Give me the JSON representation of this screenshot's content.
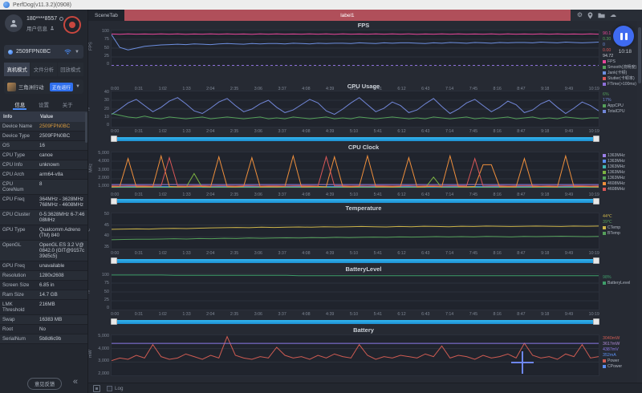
{
  "window": {
    "title": "PerfDog(v11.3.2)(0908)"
  },
  "sidebar": {
    "account": {
      "phone": "180****8557",
      "user_info_label": "用户信息"
    },
    "device_selector": {
      "name": "2509FPN0BC"
    },
    "mode_tabs": [
      {
        "label": "真机模式",
        "active": true
      },
      {
        "label": "文件分析",
        "active": false
      },
      {
        "label": "回放模式",
        "active": false
      }
    ],
    "app_row": {
      "name": "三角洲行动",
      "badge": "正在运行"
    },
    "info_tabs": [
      {
        "label": "信息",
        "active": true
      },
      {
        "label": "设置",
        "active": false
      },
      {
        "label": "关于",
        "active": false
      }
    ],
    "table": {
      "headers": [
        "Info",
        "Value"
      ],
      "rows": [
        [
          "Device Name",
          "2509FPN0BC"
        ],
        [
          "Device Type",
          "2509FPN0BC"
        ],
        [
          "OS",
          "16"
        ],
        [
          "CPU Type",
          "canoe"
        ],
        [
          "CPU Info",
          "unknown"
        ],
        [
          "CPU Arch",
          "arm64-v8a"
        ],
        [
          "CPU CoreNum",
          "8"
        ],
        [
          "CPU Freq",
          "364MHz - 3628MHz 768MHz - 4608MHz"
        ],
        [
          "CPU Cluster",
          "0-5:3628MHz 6-7:4608MHz"
        ],
        [
          "GPU Type",
          "Qualcomm Adreno (TM) 840"
        ],
        [
          "OpenGL",
          "OpenGL ES 3.2 V@0842.0 (GIT@9157c39d5c5)"
        ],
        [
          "GPU Freq",
          "unavailable"
        ],
        [
          "Resolution",
          "1280x2608"
        ],
        [
          "Screen Size",
          "6.85 in"
        ],
        [
          "Ram Size",
          "14.7 GB"
        ],
        [
          "LMK Threshold",
          "216MB"
        ],
        [
          "Swap",
          "16383 MB"
        ],
        [
          "Root",
          "No"
        ],
        [
          "SerialNum",
          "5b8d6c9b"
        ]
      ]
    },
    "feedback_button": "意见反馈"
  },
  "topbar": {
    "scene_tab": "SceneTab",
    "scene_label": "label1"
  },
  "recorder": {
    "elapsed": "10:18"
  },
  "bottom_bar": {
    "log_label": "Log"
  },
  "time_ticks": [
    "0:00",
    "0:31",
    "1:02",
    "1:33",
    "2:04",
    "2:35",
    "3:06",
    "3:37",
    "4:08",
    "4:39",
    "5:10",
    "5:41",
    "6:12",
    "6:43",
    "7:14",
    "7:45",
    "8:16",
    "8:47",
    "9:18",
    "9:49",
    "10:19"
  ],
  "chart_data": [
    {
      "id": "fps",
      "type": "line",
      "title": "FPS",
      "ylabel": "FPS",
      "yticks": [
        "100",
        "75",
        "50",
        "25",
        "0"
      ],
      "ylim": [
        0,
        100
      ],
      "show_x_axis": true,
      "series": [
        {
          "name": "FPS",
          "color": "#e8479b",
          "values": [
            90,
            89.2,
            90.3,
            89.5,
            90.1,
            89.4,
            90.2,
            89.6,
            90.4,
            89.3,
            90.1,
            89.5,
            90.3,
            89.4,
            90.2,
            89.6,
            90.1,
            89.3,
            90.4,
            89.5,
            90.2,
            89.4,
            90.1,
            89.6,
            90.3,
            89.5,
            90.2,
            89.3,
            90.4,
            89.6,
            90.1,
            89.4,
            90.3,
            89.5,
            90.2,
            89.6,
            90.4,
            89.3,
            90.1,
            89.5,
            90.2,
            89.6,
            90.3,
            89.4,
            90.1,
            89.5,
            90.4,
            89.3,
            90.2,
            89.6,
            90.1,
            89.5,
            90.3,
            89.4,
            90.2,
            89.6,
            90.1,
            89.4,
            90.3,
            89.5
          ]
        },
        {
          "name": "Smooth",
          "color": "#6d8fe0",
          "values": [
            88,
            52,
            45,
            50,
            55,
            57,
            59,
            60,
            61,
            60,
            62,
            61,
            60,
            62,
            63,
            62,
            61,
            63,
            62,
            63,
            63,
            62,
            64,
            63,
            62,
            64,
            63,
            64,
            64,
            63,
            65,
            64,
            63,
            65,
            64,
            65,
            65,
            64,
            63,
            65,
            64,
            66,
            65,
            64,
            66,
            65,
            64,
            66,
            65,
            66,
            66,
            65,
            67,
            66,
            65,
            67,
            66,
            65,
            66,
            67
          ]
        },
        {
          "name": "Jank",
          "color": "#8d6fd8",
          "dash": true,
          "values": [
            1,
            1
          ]
        }
      ],
      "legend_values": [
        {
          "text": "90.1",
          "color": "#e8479b"
        },
        {
          "text": "0.30",
          "color": "#55a05a"
        },
        {
          "text": "0",
          "color": "#6d8fe0"
        },
        {
          "text": "0.00",
          "color": "#d95757"
        },
        {
          "text": "94.72",
          "color": "#c7ccd4"
        }
      ],
      "legend_items": [
        {
          "label": "FPS",
          "color": "#e8479b"
        },
        {
          "label": "Smooth(流畅度)",
          "color": "#55a05a"
        },
        {
          "label": "Jank(卡顿)",
          "color": "#6d8fe0"
        },
        {
          "label": "Stutter(卡顿率)",
          "color": "#d95757"
        },
        {
          "label": "FTime(>100ms)",
          "color": "#8d6fd8"
        }
      ]
    },
    {
      "id": "cpu-usage",
      "type": "line",
      "title": "CPU Usage",
      "ylabel": "%",
      "yticks": [
        "40",
        "30",
        "20",
        "10",
        "0"
      ],
      "ylim": [
        0,
        40
      ],
      "show_x_axis": true,
      "series": [
        {
          "name": "TotalCPU",
          "color": "#7287d9",
          "values": [
            14,
            20,
            27,
            31,
            24,
            17,
            22,
            29,
            33,
            26,
            18,
            15,
            21,
            28,
            32,
            24,
            17,
            20,
            26,
            30,
            22,
            16,
            19,
            25,
            31,
            27,
            18,
            14,
            20,
            27,
            33,
            25,
            17,
            21,
            28,
            24,
            16,
            19,
            26,
            32,
            23,
            15,
            20,
            27,
            31,
            24,
            17,
            22,
            29,
            25,
            16,
            19,
            26,
            30,
            22,
            15,
            21,
            28,
            24,
            18
          ]
        },
        {
          "name": "AppCPU",
          "color": "#55a05a",
          "values": [
            15,
            13,
            11,
            10,
            12,
            10,
            9,
            11,
            10,
            9,
            10,
            11,
            9,
            10,
            11,
            10,
            9,
            10,
            11,
            9,
            10,
            9,
            11,
            10,
            9,
            10,
            11,
            9,
            10,
            9,
            11,
            10,
            9,
            10,
            11,
            10,
            9,
            10,
            9,
            11,
            10,
            9,
            10,
            11,
            9,
            10,
            9,
            10,
            11,
            9,
            10,
            11,
            9,
            10,
            9,
            11,
            10,
            9,
            10,
            10
          ]
        }
      ],
      "legend_values": [
        {
          "text": "6%",
          "color": "#55a05a"
        },
        {
          "text": "17%",
          "color": "#7287d9"
        }
      ],
      "legend_items": [
        {
          "label": "AppCPU",
          "color": "#55a05a"
        },
        {
          "label": "TotalCPU",
          "color": "#7287d9"
        }
      ]
    },
    {
      "id": "cpu-clock",
      "type": "line",
      "title": "CPU Clock",
      "ylabel": "MHz",
      "yticks": [
        "5,000",
        "4,000",
        "3,000",
        "2,000",
        "1,000"
      ],
      "ylim": [
        1000,
        5000
      ],
      "show_x_axis": true,
      "series": [
        {
          "name": "CPU0",
          "color": "#9b7fe8",
          "values": [
            1350,
            1350
          ]
        },
        {
          "name": "CPU1",
          "color": "#5b8ff0",
          "values": [
            1120,
            1120
          ]
        },
        {
          "name": "CPU2",
          "color": "#3fb6b2",
          "values": [
            1060,
            1060
          ]
        },
        {
          "name": "CPU3",
          "color": "#7cb342",
          "values": [
            1000,
            1000,
            1010,
            1000,
            990,
            1000,
            1010,
            1000,
            990,
            1000,
            2600,
            1000,
            990,
            1010,
            1000,
            1000,
            990,
            1000,
            1010,
            1000,
            1000,
            1010,
            990,
            1000,
            1000,
            1010,
            1000,
            990,
            1000,
            1000,
            1010,
            1000,
            1000,
            990,
            1010,
            1000,
            1000,
            1010,
            1000,
            2200,
            1000,
            990,
            1000,
            1010,
            1000,
            1000,
            990,
            1000,
            1010,
            1000,
            1000,
            1010,
            1000,
            990,
            1000,
            1000,
            1010,
            1000,
            1000,
            990
          ]
        },
        {
          "name": "CPU6",
          "color": "#ef8f3c",
          "values": [
            1100,
            1150,
            4300,
            1100,
            1120,
            1100,
            4600,
            1150,
            1100,
            1120,
            1100,
            1150,
            1100,
            4500,
            1120,
            1100,
            1150,
            4400,
            1100,
            1120,
            1100,
            1150,
            4600,
            1100,
            1120,
            1150,
            1100,
            4500,
            1120,
            1100,
            1150,
            4600,
            1100,
            1120,
            1100,
            1150,
            4400,
            1100,
            1120,
            1150,
            1100,
            4600,
            1120,
            1100,
            1150,
            3600,
            3600,
            1100,
            1120,
            1100,
            4300,
            1100,
            1150,
            1120,
            1100,
            4600,
            1100,
            1150,
            1120,
            1100
          ]
        },
        {
          "name": "CPU7",
          "color": "#d95757",
          "values": [
            1200,
            1180,
            1200,
            1220,
            1200,
            1180,
            1200,
            4400,
            1200,
            1180,
            1200,
            1220,
            1180,
            1200,
            1200,
            1180,
            1220,
            1200,
            1180,
            1200,
            1200,
            1180,
            1200,
            1220,
            1200,
            1180,
            4500,
            1200,
            1220,
            1180,
            1200,
            1180,
            1220,
            1200,
            1180,
            1200,
            1220,
            1180,
            1200,
            1200,
            1180,
            1200,
            1220,
            1200,
            4300,
            1180,
            1200,
            1220,
            1180,
            1200,
            1200,
            1220,
            1180,
            1200,
            1180,
            1200,
            1220,
            1200,
            1180,
            1200
          ]
        }
      ],
      "legend_values": [],
      "legend_items": [
        {
          "label": "1363MHz",
          "color": "#9b7fe8"
        },
        {
          "label": "1363MHz",
          "color": "#5b8ff0"
        },
        {
          "label": "1363MHz",
          "color": "#3fb6b2"
        },
        {
          "label": "1363MHz",
          "color": "#7cb342"
        },
        {
          "label": "1363MHz",
          "color": "#55a05a"
        },
        {
          "label": "4608MHz",
          "color": "#ef8f3c"
        },
        {
          "label": "4608MHz",
          "color": "#d95757"
        }
      ]
    },
    {
      "id": "temperature",
      "type": "line",
      "title": "Temperature",
      "ylabel": "℃",
      "yticks": [
        "50",
        "45",
        "40",
        "35"
      ],
      "ylim": [
        35,
        50
      ],
      "show_x_axis": true,
      "series": [
        {
          "name": "CTemp",
          "color": "#cdb54a",
          "values": [
            43.2,
            43.3,
            43.4,
            43.3,
            43.5,
            43.6,
            43.5,
            43.7,
            43.8,
            43.9,
            44,
            43.9,
            44.1,
            44,
            44.1,
            44.2,
            44.1,
            44.3,
            44.2,
            44.3,
            44.4,
            44.3,
            44.2,
            44.4,
            44.3,
            44.5,
            44.4,
            44.3,
            44.5,
            44.4,
            44.6,
            44.5,
            44.4,
            44.5,
            44.6,
            44.5,
            44.4,
            44.6,
            44.5,
            44.6
          ]
        },
        {
          "name": "BTemp",
          "color": "#55a05a",
          "values": [
            38.8,
            38.9,
            39,
            39,
            39.1,
            39.2,
            39.1,
            39.3,
            39.2,
            39.4,
            39.3,
            39.5,
            39.4,
            39.5,
            39.6,
            39.5,
            39.7,
            39.6,
            39.8,
            39.7,
            39.8,
            39.9,
            39.8,
            40,
            39.9,
            40,
            40.1,
            40,
            40.1,
            40,
            40.2,
            40.1,
            40,
            40.2,
            40.1,
            40.2,
            40.3,
            40.2,
            40.1,
            40.2
          ]
        }
      ],
      "legend_values": [
        {
          "text": "44℃",
          "color": "#cdb54a"
        },
        {
          "text": "39℃",
          "color": "#55a05a"
        }
      ],
      "legend_items": [
        {
          "label": "CTemp",
          "color": "#cdb54a"
        },
        {
          "label": "BTemp",
          "color": "#55a05a"
        }
      ]
    },
    {
      "id": "battery-level",
      "type": "line",
      "title": "BatteryLevel",
      "ylabel": "%",
      "yticks": [
        "100",
        "75",
        "50",
        "25",
        "0"
      ],
      "ylim": [
        0,
        102
      ],
      "show_x_axis": true,
      "series": [
        {
          "name": "BatteryLevel",
          "color": "#3f9e6a",
          "values": [
            100,
            100,
            100,
            100,
            100,
            99,
            99,
            99,
            99,
            99,
            99,
            99,
            99,
            99,
            99,
            98,
            98,
            98,
            98,
            98,
            98,
            98,
            98,
            98,
            98,
            98,
            98,
            98,
            98,
            98,
            98,
            98,
            98,
            98,
            98,
            98,
            98,
            98,
            98,
            98
          ]
        }
      ],
      "legend_values": [
        {
          "text": "98%",
          "color": "#3f9e6a"
        }
      ],
      "legend_items": [
        {
          "label": "BatteryLevel",
          "color": "#3f9e6a"
        }
      ]
    },
    {
      "id": "battery",
      "type": "line",
      "title": "Battery",
      "ylabel": "mW",
      "yticks": [
        "5,000",
        "4,000",
        "3,000",
        "2,000"
      ],
      "ylim": [
        2000,
        5000
      ],
      "show_x_axis": false,
      "crosshair": true,
      "series": [
        {
          "name": "Power",
          "color": "#cf5b52",
          "values": [
            3100,
            3300,
            3200,
            3500,
            3300,
            4300,
            3400,
            3200,
            3300,
            3600,
            3400,
            3200,
            3500,
            3300,
            4900,
            3500,
            3300,
            3200,
            3400,
            3300,
            4100,
            3500,
            3300,
            3400,
            3200,
            3500,
            3300,
            3600,
            3400,
            3300,
            4300,
            3500,
            3200,
            3400,
            3300,
            3500,
            3400,
            3300,
            3600,
            3400,
            4200,
            3300,
            3500,
            3400,
            3200,
            3500,
            3300,
            3400,
            3600,
            3300,
            4400,
            3500,
            3300,
            3400,
            3200,
            3600,
            3400,
            4300,
            3300,
            3400
          ]
        },
        {
          "name": "Voltage",
          "color": "#8d7ae8",
          "values": [
            4390,
            4390
          ]
        }
      ],
      "legend_values": [
        {
          "text": "3040mW",
          "color": "#cf5b52"
        },
        {
          "text": "3617mW",
          "color": "#b08cd8"
        },
        {
          "text": "4387mV",
          "color": "#8d7ae8"
        },
        {
          "text": "352mA",
          "color": "#5b8ff0"
        }
      ],
      "legend_items": [
        {
          "label": "Power",
          "color": "#cf5b52"
        },
        {
          "label": "CPower",
          "color": "#5b8ff0"
        }
      ]
    }
  ]
}
